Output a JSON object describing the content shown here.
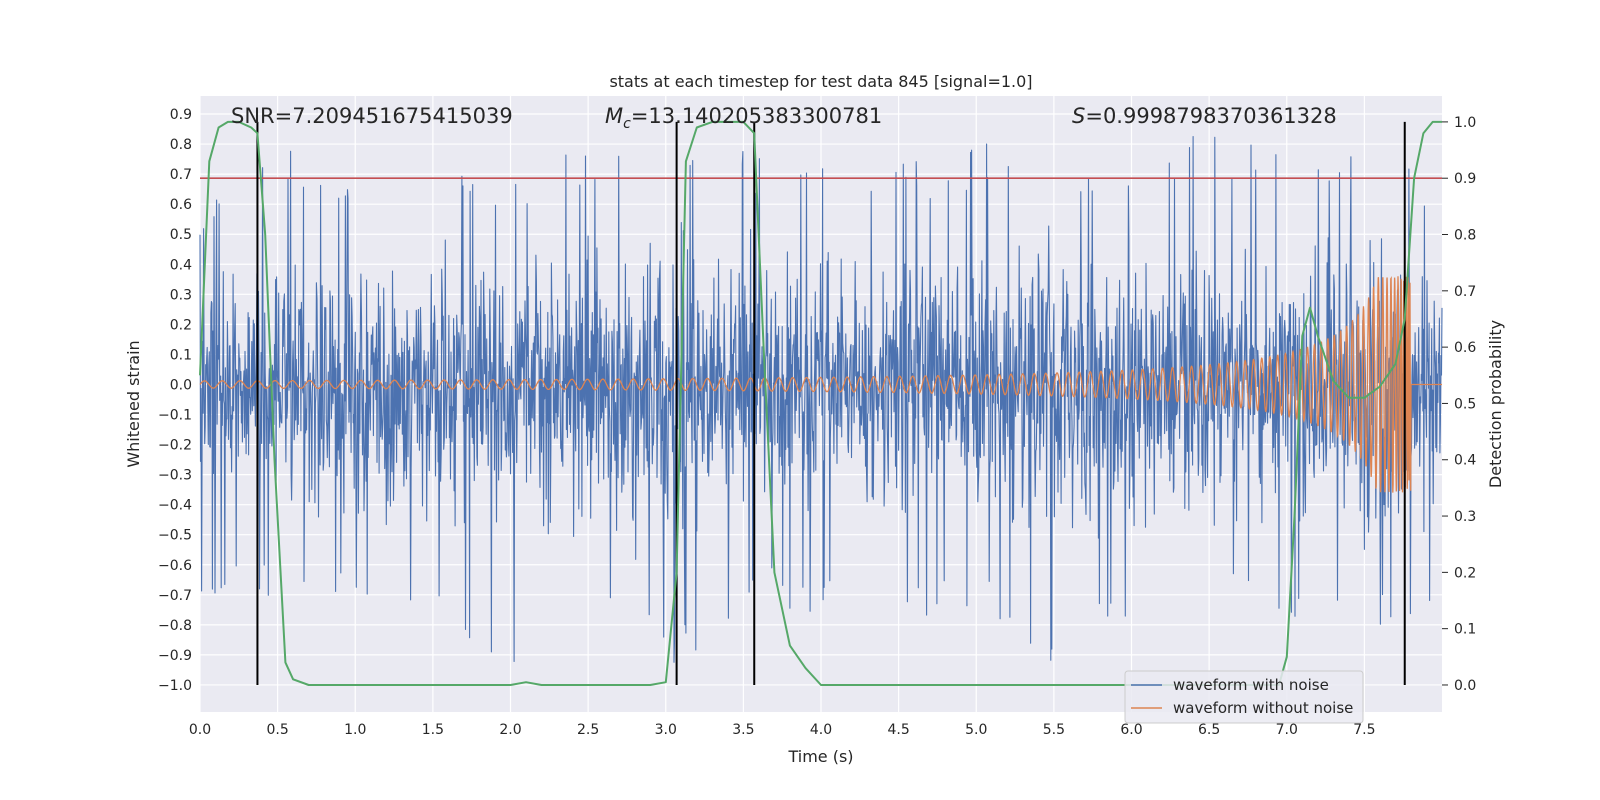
{
  "chart_data": {
    "type": "line",
    "title": "stats at each timestep for test data 845 [signal=1.0]",
    "xlabel": "Time (s)",
    "ylabel": "Whitened strain",
    "y2label": "Detection probability",
    "xlim": [
      0.0,
      8.0
    ],
    "ylim": [
      -1.09,
      0.96
    ],
    "y2lim": [
      -0.048,
      1.046
    ],
    "xticks": [
      "0.0",
      "0.5",
      "1.0",
      "1.5",
      "2.0",
      "2.5",
      "3.0",
      "3.5",
      "4.0",
      "4.5",
      "5.0",
      "5.5",
      "6.0",
      "6.5",
      "7.0",
      "7.5"
    ],
    "yticks": [
      "0.9",
      "0.8",
      "0.7",
      "0.6",
      "0.5",
      "0.4",
      "0.3",
      "0.2",
      "0.1",
      "0.0",
      "−0.1",
      "−0.2",
      "−0.3",
      "−0.4",
      "−0.5",
      "−0.6",
      "−0.7",
      "−0.8",
      "−0.9",
      "−1.0"
    ],
    "y2ticks": [
      "1.0",
      "0.9",
      "0.8",
      "0.7",
      "0.6",
      "0.5",
      "0.4",
      "0.3",
      "0.2",
      "0.1",
      "0.0"
    ],
    "grid": true,
    "legend_position": "lower-right",
    "threshold": {
      "axis": "y2",
      "value": 0.9,
      "color": "#c44e52"
    },
    "vertical_lines": [
      0.37,
      3.07,
      3.57,
      7.76
    ],
    "annotations": {
      "snr": "SNR=7.209451675415039",
      "mc_symbol": "M",
      "mc_sub": "c",
      "mc_value": "=13.140205383300781",
      "s_symbol": "S",
      "s_value": "=0.9998798370361328"
    },
    "series": [
      {
        "name": "waveform with noise",
        "color": "#4c72b0",
        "kind": "noise",
        "envelope": {
          "x": [
            0.0,
            0.5,
            1.0,
            1.5,
            2.0,
            2.5,
            3.0,
            3.5,
            4.0,
            4.5,
            5.0,
            5.5,
            6.0,
            6.5,
            7.0,
            7.5,
            7.8,
            8.0
          ],
          "max": [
            0.6,
            0.8,
            0.75,
            0.7,
            0.72,
            0.8,
            0.83,
            0.78,
            0.72,
            0.74,
            0.8,
            0.82,
            0.73,
            0.88,
            0.8,
            0.77,
            0.75,
            0.6
          ],
          "min": [
            -0.7,
            -0.72,
            -0.75,
            -0.86,
            -0.93,
            -0.78,
            -1.0,
            -0.74,
            -0.77,
            -0.8,
            -0.74,
            -1.0,
            -0.79,
            -0.78,
            -0.78,
            -0.88,
            -0.83,
            -0.71
          ]
        }
      },
      {
        "name": "waveform without noise",
        "color": "#dd8452",
        "kind": "chirp",
        "t_merge": 7.8,
        "amplitude_start": 0.012,
        "peak_amplitude": 0.36
      },
      {
        "name": "detection probability",
        "color": "#55a868",
        "axis": "y2",
        "x": [
          0.0,
          0.06,
          0.12,
          0.18,
          0.25,
          0.33,
          0.37,
          0.42,
          0.48,
          0.55,
          0.6,
          0.7,
          1.0,
          1.5,
          2.0,
          2.1,
          2.2,
          2.5,
          2.9,
          3.0,
          3.07,
          3.13,
          3.2,
          3.3,
          3.5,
          3.57,
          3.63,
          3.7,
          3.8,
          3.9,
          4.0,
          4.5,
          5.0,
          5.5,
          6.0,
          6.5,
          6.95,
          7.0,
          7.05,
          7.1,
          7.15,
          7.2,
          7.3,
          7.4,
          7.5,
          7.6,
          7.7,
          7.76,
          7.82,
          7.88,
          7.94,
          8.0
        ],
        "y": [
          0.55,
          0.93,
          0.99,
          1.0,
          1.0,
          0.99,
          0.98,
          0.8,
          0.4,
          0.04,
          0.01,
          0.0,
          0.0,
          0.0,
          0.0,
          0.005,
          0.0,
          0.0,
          0.0,
          0.005,
          0.2,
          0.93,
          0.99,
          1.0,
          1.0,
          0.98,
          0.6,
          0.2,
          0.07,
          0.03,
          0.0,
          0.0,
          0.0,
          0.0,
          0.0,
          0.0,
          0.0,
          0.05,
          0.3,
          0.62,
          0.67,
          0.62,
          0.54,
          0.51,
          0.51,
          0.53,
          0.57,
          0.65,
          0.9,
          0.98,
          1.0,
          1.0
        ]
      }
    ]
  }
}
